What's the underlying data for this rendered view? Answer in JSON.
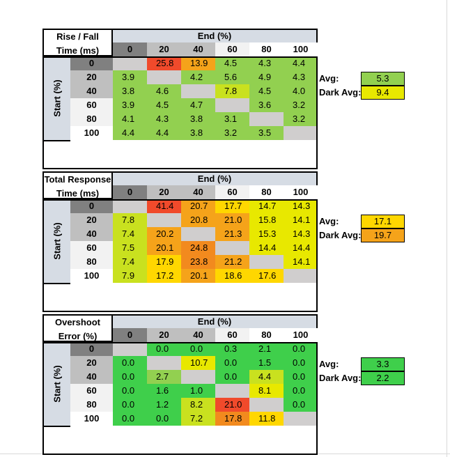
{
  "end_header": "End (%)",
  "start_header": "Start (%)",
  "column_labels": [
    "0",
    "20",
    "40",
    "60",
    "80",
    "100"
  ],
  "row_labels": [
    "0",
    "20",
    "40",
    "60",
    "80",
    "100"
  ],
  "colors": {
    "header_bg": "#d6dce4",
    "diagonal": "#d0cece",
    "dark_gray": "#808080",
    "mid_gray": "#bfbfbf",
    "light_gray": "#f2f2f2",
    "white": "#ffffff",
    "green": "#3fcf4b",
    "light_green": "#92d050",
    "yellow_green": "#c9e11f",
    "yellow": "#e8e800",
    "amber": "#ffd700",
    "orange": "#f5a31a",
    "orange2": "#f28a1e",
    "red": "#f04a2b"
  },
  "chart_data": [
    {
      "type": "table",
      "title_lines": [
        "Rise / Fall",
        "Time (ms)"
      ],
      "categories": [
        "0",
        "20",
        "40",
        "60",
        "80",
        "100"
      ],
      "rows": [
        [
          "",
          "25.8",
          "13.9",
          "4.5",
          "4.3",
          "4.4"
        ],
        [
          "3.9",
          "",
          "4.2",
          "5.6",
          "4.9",
          "4.3"
        ],
        [
          "3.8",
          "4.6",
          "",
          "7.8",
          "4.5",
          "4.0"
        ],
        [
          "3.9",
          "4.5",
          "4.7",
          "",
          "3.6",
          "3.2"
        ],
        [
          "4.1",
          "4.3",
          "3.8",
          "3.1",
          "",
          "3.2"
        ],
        [
          "4.4",
          "4.4",
          "3.8",
          "3.2",
          "3.5",
          ""
        ]
      ],
      "colors": [
        [
          "diagonal",
          "red",
          "orange",
          "light_green",
          "light_green",
          "light_green"
        ],
        [
          "light_green",
          "diagonal",
          "light_green",
          "light_green",
          "light_green",
          "light_green"
        ],
        [
          "light_green",
          "light_green",
          "diagonal",
          "yellow_green",
          "light_green",
          "light_green"
        ],
        [
          "light_green",
          "light_green",
          "light_green",
          "diagonal",
          "light_green",
          "light_green"
        ],
        [
          "light_green",
          "light_green",
          "light_green",
          "light_green",
          "diagonal",
          "light_green"
        ],
        [
          "light_green",
          "light_green",
          "light_green",
          "light_green",
          "light_green",
          "diagonal"
        ]
      ],
      "avg_label": "Avg:",
      "avg_value": "5.3",
      "avg_color": "light_green",
      "dark_avg_label": "Dark Avg:",
      "dark_avg_value": "9.4",
      "dark_avg_color": "yellow"
    },
    {
      "type": "table",
      "title_lines": [
        "Total Response",
        "Time (ms)"
      ],
      "categories": [
        "0",
        "20",
        "40",
        "60",
        "80",
        "100"
      ],
      "rows": [
        [
          "",
          "41.4",
          "20.7",
          "17.7",
          "14.7",
          "14.3"
        ],
        [
          "7.8",
          "",
          "20.8",
          "21.0",
          "15.8",
          "14.1"
        ],
        [
          "7.4",
          "20.2",
          "",
          "21.3",
          "15.3",
          "14.3"
        ],
        [
          "7.5",
          "20.1",
          "24.8",
          "",
          "14.4",
          "14.4"
        ],
        [
          "7.4",
          "17.9",
          "23.8",
          "21.2",
          "",
          "14.1"
        ],
        [
          "7.9",
          "17.2",
          "20.1",
          "18.6",
          "17.6",
          ""
        ]
      ],
      "colors": [
        [
          "diagonal",
          "red",
          "orange",
          "amber",
          "yellow",
          "yellow"
        ],
        [
          "yellow_green",
          "diagonal",
          "orange",
          "orange",
          "yellow",
          "yellow"
        ],
        [
          "yellow_green",
          "orange",
          "diagonal",
          "orange",
          "yellow",
          "yellow"
        ],
        [
          "yellow_green",
          "orange",
          "orange2",
          "diagonal",
          "yellow",
          "yellow"
        ],
        [
          "yellow_green",
          "amber",
          "orange2",
          "orange",
          "diagonal",
          "yellow"
        ],
        [
          "yellow_green",
          "amber",
          "orange",
          "amber",
          "amber",
          "diagonal"
        ]
      ],
      "avg_label": "Avg:",
      "avg_value": "17.1",
      "avg_color": "amber",
      "dark_avg_label": "Dark Avg:",
      "dark_avg_value": "19.7",
      "dark_avg_color": "orange"
    },
    {
      "type": "table",
      "title_lines": [
        "Overshoot",
        "Error (%)"
      ],
      "categories": [
        "0",
        "20",
        "40",
        "60",
        "80",
        "100"
      ],
      "rows": [
        [
          "",
          "0.0",
          "0.0",
          "0.3",
          "2.1",
          "0.0"
        ],
        [
          "0.0",
          "",
          "10.7",
          "0.0",
          "1.5",
          "0.0"
        ],
        [
          "0.0",
          "2.7",
          "",
          "0.0",
          "4.4",
          "0.0"
        ],
        [
          "0.0",
          "1.6",
          "1.0",
          "",
          "8.1",
          "0.0"
        ],
        [
          "0.0",
          "1.2",
          "8.2",
          "21.0",
          "",
          "0.0"
        ],
        [
          "0.0",
          "0.0",
          "7.2",
          "17.8",
          "11.8",
          ""
        ]
      ],
      "colors": [
        [
          "diagonal",
          "green",
          "green",
          "green",
          "green",
          "green"
        ],
        [
          "green",
          "diagonal",
          "yellow",
          "green",
          "green",
          "green"
        ],
        [
          "green",
          "light_green",
          "diagonal",
          "green",
          "yellow_green",
          "green"
        ],
        [
          "green",
          "green",
          "green",
          "diagonal",
          "yellow",
          "green"
        ],
        [
          "green",
          "green",
          "yellow_green",
          "red",
          "diagonal",
          "green"
        ],
        [
          "green",
          "green",
          "yellow_green",
          "orange2",
          "amber",
          "diagonal"
        ]
      ],
      "avg_label": "Avg:",
      "avg_value": "3.3",
      "avg_color": "green",
      "dark_avg_label": "Dark Avg:",
      "dark_avg_value": "2.2",
      "dark_avg_color": "green"
    }
  ]
}
